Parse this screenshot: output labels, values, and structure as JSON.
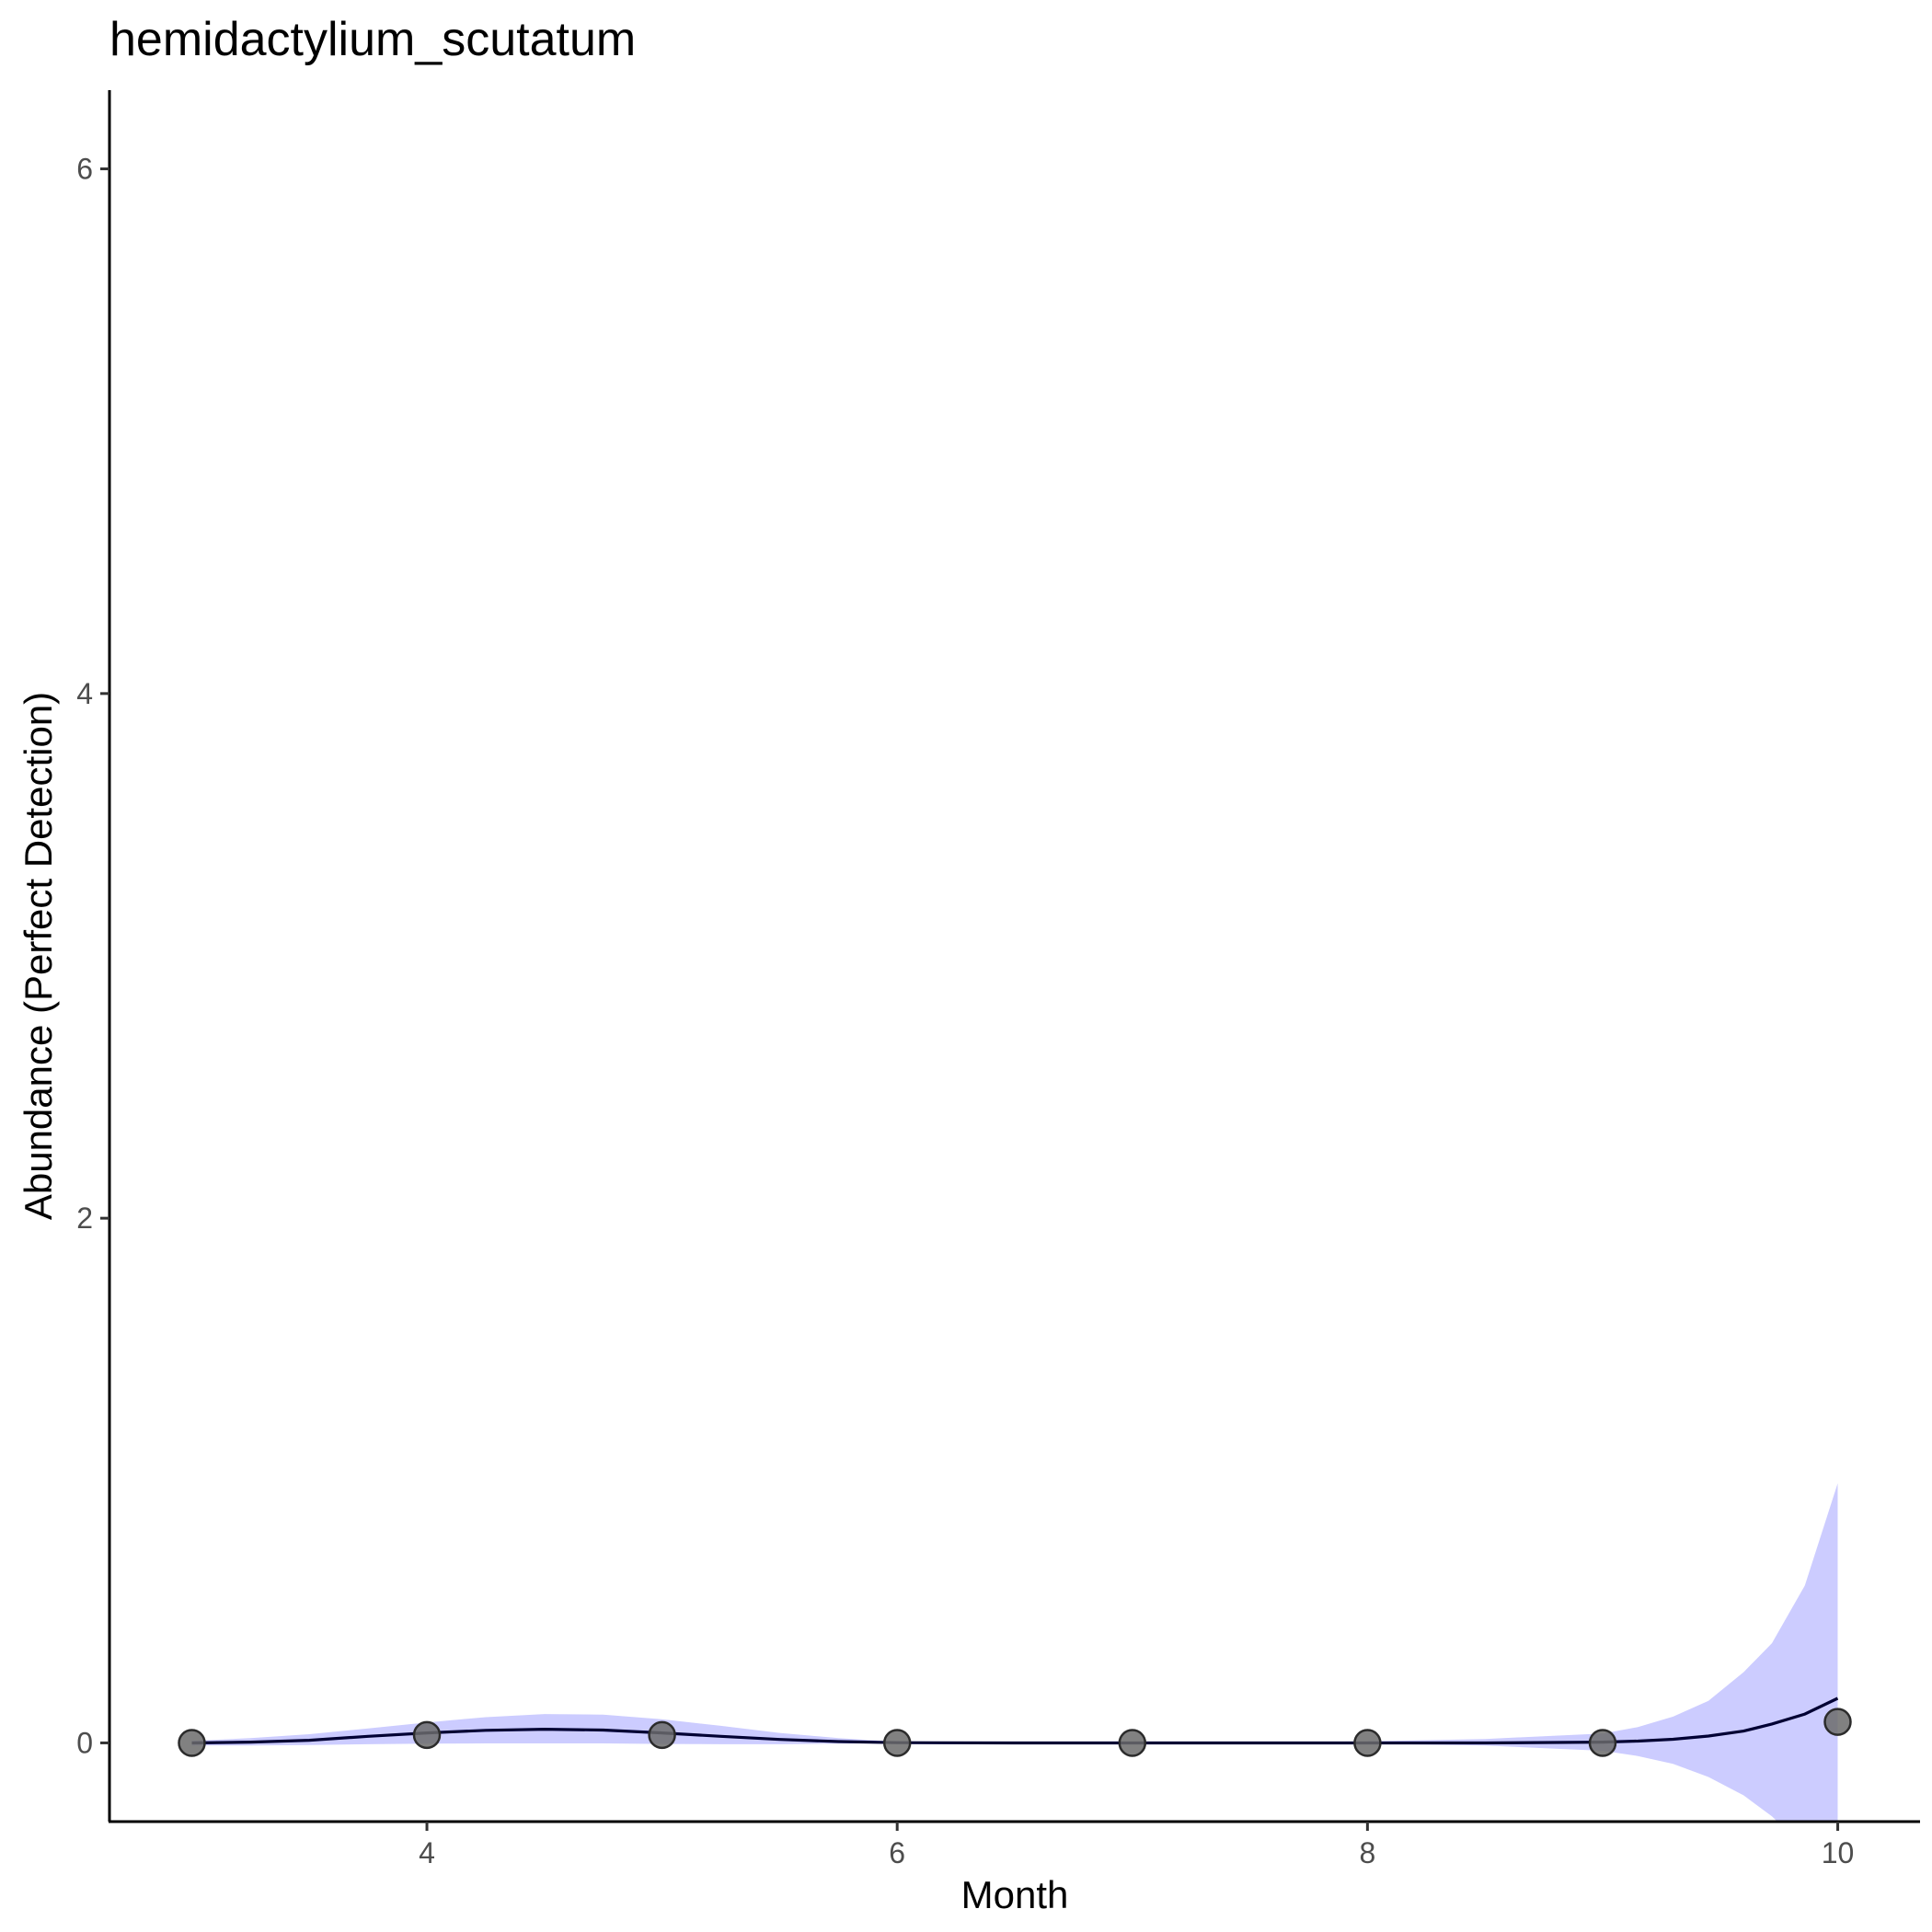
{
  "chart_data": {
    "type": "scatter",
    "title": "hemidactylium_scutatum",
    "xlabel": "Month",
    "ylabel": "Abundance (Perfect Detection)",
    "xlim": [
      2.65,
      10.35
    ],
    "ylim": [
      -0.3,
      6.3
    ],
    "xticks": [
      4,
      6,
      8,
      10
    ],
    "yticks": [
      0,
      2,
      4,
      6
    ],
    "grid": false,
    "legend": "none",
    "colors": {
      "point_fill": "#6b6b6b",
      "point_stroke": "#2b2b2b",
      "ribbon": "#ccccff",
      "line": "#000033"
    },
    "points": {
      "x": [
        3,
        4,
        5,
        6,
        7,
        8,
        9,
        10
      ],
      "y": [
        0.0,
        0.03,
        0.03,
        0.0,
        0.0,
        0.0,
        0.0,
        0.08
      ]
    },
    "smooth": {
      "x": [
        3.0,
        3.25,
        3.5,
        3.75,
        4.0,
        4.25,
        4.5,
        4.75,
        5.0,
        5.25,
        5.5,
        5.75,
        6.0,
        6.5,
        7.0,
        7.5,
        8.0,
        8.5,
        9.0,
        9.15,
        9.3,
        9.45,
        9.6,
        9.72,
        9.86,
        10.0
      ],
      "y": [
        0.0,
        0.003,
        0.01,
        0.025,
        0.038,
        0.048,
        0.052,
        0.049,
        0.038,
        0.025,
        0.013,
        0.005,
        0.001,
        0.0,
        0.0,
        0.0,
        0.0,
        0.0,
        0.003,
        0.007,
        0.014,
        0.026,
        0.045,
        0.072,
        0.11,
        0.17
      ],
      "ymin": [
        -0.01,
        -0.01,
        -0.008,
        -0.005,
        -0.003,
        -0.002,
        -0.002,
        -0.002,
        -0.004,
        -0.005,
        -0.005,
        -0.003,
        -0.001,
        -0.001,
        0.0,
        -0.001,
        -0.003,
        -0.01,
        -0.03,
        -0.05,
        -0.08,
        -0.13,
        -0.2,
        -0.28,
        -0.4,
        -0.45
      ],
      "ymax": [
        0.008,
        0.018,
        0.033,
        0.055,
        0.078,
        0.098,
        0.11,
        0.108,
        0.09,
        0.065,
        0.038,
        0.018,
        0.004,
        0.001,
        0.0,
        0.002,
        0.006,
        0.015,
        0.036,
        0.06,
        0.1,
        0.16,
        0.27,
        0.38,
        0.6,
        0.99
      ]
    }
  }
}
